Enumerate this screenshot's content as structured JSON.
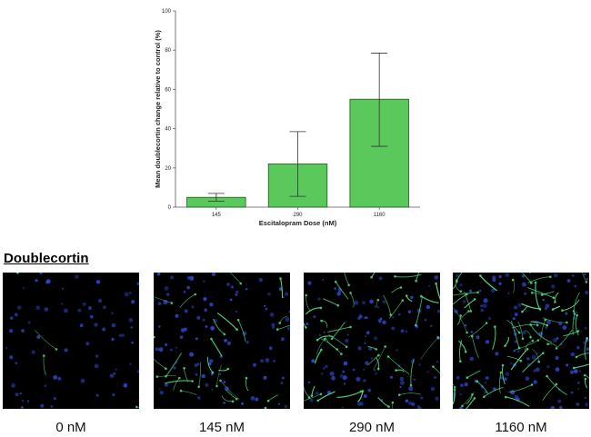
{
  "chart_data": {
    "type": "bar",
    "categories": [
      "145",
      "290",
      "1160"
    ],
    "values": [
      5,
      22,
      55
    ],
    "error_low": [
      3,
      5.5,
      31
    ],
    "error_high": [
      7,
      38.5,
      78.5
    ],
    "xlabel": "Escitalopram Dose (nM)",
    "ylabel": "Mean doublecortin change relative to control (%)",
    "ylim": [
      0,
      100
    ],
    "yticks": [
      0,
      20,
      40,
      60,
      80,
      100
    ],
    "bar_color": "#5ac85a",
    "bar_edge_color": "#1c5a1c",
    "grid": false,
    "legend": "none"
  },
  "images_section": {
    "title": "Doublecortin",
    "panels": [
      {
        "label": "0 nM",
        "density": "sparse"
      },
      {
        "label": "145 nM",
        "density": "medium"
      },
      {
        "label": "290 nM",
        "density": "medium-high"
      },
      {
        "label": "1160 nM",
        "density": "high"
      }
    ],
    "nuclei_color": "#2f45c8",
    "neurite_color": "#54e88c"
  }
}
